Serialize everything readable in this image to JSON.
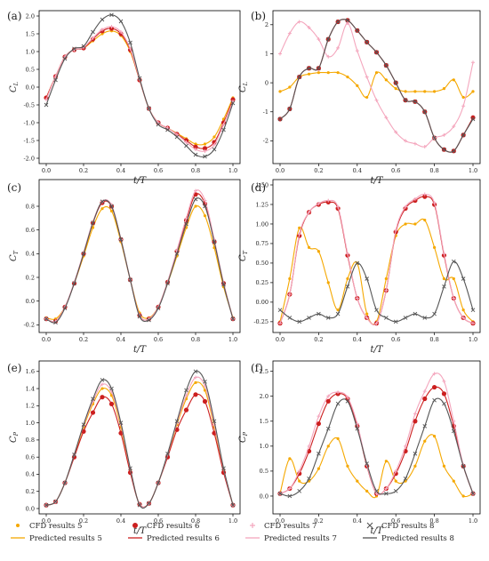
{
  "legend": [
    {
      "label": "CFD results 5",
      "color": "#f5a800",
      "kind": "cfd",
      "marker": "dot-small"
    },
    {
      "label": "Predicted results 5",
      "color": "#f5a800",
      "kind": "pred"
    },
    {
      "label": "CFD results 6",
      "color": "#cc1f1f",
      "kind": "cfd",
      "marker": "dot-large"
    },
    {
      "label": "Predicted results 6",
      "color": "#cc1f1f",
      "kind": "pred"
    },
    {
      "label": "CFD results 7",
      "color": "#f4a6bd",
      "kind": "cfd",
      "marker": "star"
    },
    {
      "label": "Predicted results 7",
      "color": "#f4a6bd",
      "kind": "pred"
    },
    {
      "label": "CFD results 8",
      "color": "#555555",
      "kind": "cfd",
      "marker": "x"
    },
    {
      "label": "Predicted results 8",
      "color": "#555555",
      "kind": "pred"
    }
  ],
  "chart_data": [
    {
      "type": "line",
      "panel": "(a)",
      "xlabel": "t/T",
      "ylabel": "C",
      "ylabel_sub": "L",
      "xlim": [
        0,
        1
      ],
      "ylim": [
        -2.0,
        2.0
      ],
      "xticks": [
        0.0,
        0.2,
        0.4,
        0.6,
        0.8,
        1.0
      ],
      "yticks": [
        -2.0,
        -1.5,
        -1.0,
        -0.5,
        0.0,
        0.5,
        1.0,
        1.5,
        2.0
      ],
      "xtick_labels": [
        "0.0",
        "0.2",
        "0.4",
        "0.6",
        "0.8",
        "1.0"
      ],
      "ytick_labels": [
        "-2.0",
        "-1.5",
        "-1.0",
        "-0.5",
        "0.0",
        "0.5",
        "1.0",
        "1.5",
        "2.0"
      ],
      "x": [
        0.0,
        0.05,
        0.1,
        0.15,
        0.2,
        0.25,
        0.3,
        0.35,
        0.4,
        0.45,
        0.5,
        0.55,
        0.6,
        0.65,
        0.7,
        0.75,
        0.8,
        0.85,
        0.9,
        0.95,
        1.0
      ],
      "series": [
        {
          "name": "5",
          "values": [
            -0.3,
            0.3,
            0.85,
            1.05,
            1.1,
            1.3,
            1.5,
            1.58,
            1.45,
            1.0,
            0.2,
            -0.6,
            -1.0,
            -1.15,
            -1.3,
            -1.45,
            -1.6,
            -1.6,
            -1.4,
            -0.9,
            -0.3
          ]
        },
        {
          "name": "6",
          "values": [
            -0.3,
            0.3,
            0.85,
            1.05,
            1.1,
            1.35,
            1.58,
            1.65,
            1.5,
            1.05,
            0.2,
            -0.6,
            -1.0,
            -1.15,
            -1.32,
            -1.5,
            -1.68,
            -1.72,
            -1.55,
            -1.0,
            -0.35
          ]
        },
        {
          "name": "7",
          "values": [
            -0.35,
            0.3,
            0.85,
            1.05,
            1.12,
            1.38,
            1.62,
            1.7,
            1.55,
            1.08,
            0.22,
            -0.6,
            -1.0,
            -1.15,
            -1.33,
            -1.55,
            -1.75,
            -1.8,
            -1.62,
            -1.05,
            -0.4
          ]
        },
        {
          "name": "8",
          "values": [
            -0.5,
            0.2,
            0.8,
            1.08,
            1.15,
            1.55,
            1.9,
            2.03,
            1.85,
            1.25,
            0.25,
            -0.6,
            -1.05,
            -1.2,
            -1.4,
            -1.65,
            -1.9,
            -1.95,
            -1.75,
            -1.2,
            -0.45
          ]
        }
      ]
    },
    {
      "type": "line",
      "panel": "(b)",
      "xlabel": "t/T",
      "ylabel": "C",
      "ylabel_sub": "L",
      "xlim": [
        0,
        1
      ],
      "ylim": [
        -2.6,
        2.3
      ],
      "xticks": [
        0.0,
        0.2,
        0.4,
        0.6,
        0.8,
        1.0
      ],
      "yticks": [
        -2,
        -1,
        0,
        1,
        2
      ],
      "xtick_labels": [
        "0.0",
        "0.2",
        "0.4",
        "0.6",
        "0.8",
        "1.0"
      ],
      "ytick_labels": [
        "-2",
        "-1",
        "0",
        "1",
        "2"
      ],
      "x": [
        0.0,
        0.05,
        0.1,
        0.15,
        0.2,
        0.25,
        0.3,
        0.35,
        0.4,
        0.45,
        0.5,
        0.55,
        0.6,
        0.65,
        0.7,
        0.75,
        0.8,
        0.85,
        0.9,
        0.95,
        1.0
      ],
      "series": [
        {
          "name": "5",
          "values": [
            -0.3,
            -0.15,
            0.2,
            0.3,
            0.35,
            0.35,
            0.35,
            0.2,
            -0.1,
            -0.5,
            0.35,
            0.1,
            -0.2,
            -0.3,
            -0.3,
            -0.3,
            -0.3,
            -0.2,
            0.1,
            -0.5,
            -0.3
          ]
        },
        {
          "name": "6",
          "values": [
            -1.25,
            -0.9,
            0.2,
            0.5,
            0.5,
            1.5,
            2.1,
            2.15,
            1.8,
            1.4,
            1.05,
            0.6,
            0.0,
            -0.6,
            -0.65,
            -1.0,
            -1.9,
            -2.3,
            -2.35,
            -1.8,
            -1.2
          ]
        },
        {
          "name": "7",
          "values": [
            1.0,
            1.7,
            2.1,
            1.9,
            1.5,
            0.9,
            1.2,
            2.05,
            1.1,
            0.2,
            -0.6,
            -1.2,
            -1.7,
            -2.0,
            -2.1,
            -2.2,
            -1.9,
            -1.8,
            -1.5,
            -0.8,
            0.7
          ]
        },
        {
          "name": "8",
          "values": [
            -1.25,
            -0.9,
            0.2,
            0.5,
            0.5,
            1.5,
            2.1,
            2.15,
            1.8,
            1.4,
            1.05,
            0.6,
            0.0,
            -0.6,
            -0.65,
            -1.0,
            -1.9,
            -2.3,
            -2.35,
            -1.8,
            -1.25
          ]
        }
      ]
    },
    {
      "type": "line",
      "panel": "(c)",
      "xlabel": "t/T",
      "ylabel": "C",
      "ylabel_sub": "T",
      "xlim": [
        0,
        1
      ],
      "ylim": [
        -0.22,
        0.98
      ],
      "xticks": [
        0.0,
        0.2,
        0.4,
        0.6,
        0.8,
        1.0
      ],
      "yticks": [
        -0.2,
        0.0,
        0.2,
        0.4,
        0.6,
        0.8
      ],
      "xtick_labels": [
        "0.0",
        "0.2",
        "0.4",
        "0.6",
        "0.8",
        "1.0"
      ],
      "ytick_labels": [
        "-0.2",
        "0.0",
        "0.2",
        "0.4",
        "0.6",
        "0.8"
      ],
      "x": [
        0.0,
        0.05,
        0.1,
        0.15,
        0.2,
        0.25,
        0.3,
        0.35,
        0.4,
        0.45,
        0.5,
        0.55,
        0.6,
        0.65,
        0.7,
        0.75,
        0.8,
        0.85,
        0.9,
        0.95,
        1.0
      ],
      "series": [
        {
          "name": "5",
          "values": [
            -0.14,
            -0.15,
            -0.05,
            0.15,
            0.38,
            0.62,
            0.78,
            0.76,
            0.5,
            0.18,
            -0.1,
            -0.14,
            -0.05,
            0.15,
            0.38,
            0.62,
            0.8,
            0.72,
            0.45,
            0.12,
            -0.14
          ]
        },
        {
          "name": "6",
          "values": [
            -0.15,
            -0.17,
            -0.05,
            0.15,
            0.4,
            0.66,
            0.83,
            0.8,
            0.52,
            0.18,
            -0.12,
            -0.15,
            -0.05,
            0.16,
            0.42,
            0.68,
            0.9,
            0.82,
            0.5,
            0.15,
            -0.15
          ]
        },
        {
          "name": "7",
          "values": [
            -0.15,
            -0.17,
            -0.05,
            0.16,
            0.41,
            0.67,
            0.84,
            0.81,
            0.52,
            0.18,
            -0.12,
            -0.15,
            -0.05,
            0.16,
            0.43,
            0.7,
            0.93,
            0.85,
            0.52,
            0.15,
            -0.15
          ]
        },
        {
          "name": "8",
          "values": [
            -0.15,
            -0.18,
            -0.06,
            0.15,
            0.4,
            0.66,
            0.84,
            0.8,
            0.52,
            0.18,
            -0.13,
            -0.16,
            -0.06,
            0.15,
            0.4,
            0.65,
            0.86,
            0.8,
            0.5,
            0.14,
            -0.15
          ]
        }
      ]
    },
    {
      "type": "line",
      "panel": "(d)",
      "xlabel": "t/T",
      "ylabel": "C",
      "ylabel_sub": "T",
      "xlim": [
        0,
        1
      ],
      "ylim": [
        -0.32,
        1.5
      ],
      "xticks": [
        0.0,
        0.2,
        0.4,
        0.6,
        0.8,
        1.0
      ],
      "yticks": [
        -0.25,
        0.0,
        0.25,
        0.5,
        0.75,
        1.0,
        1.25,
        1.5
      ],
      "xtick_labels": [
        "0.0",
        "0.2",
        "0.4",
        "0.6",
        "0.8",
        "1.0"
      ],
      "ytick_labels": [
        "-0.25",
        "0.00",
        "0.25",
        "0.50",
        "0.75",
        "1.00",
        "1.25",
        "1.50"
      ],
      "x": [
        0.0,
        0.05,
        0.1,
        0.15,
        0.2,
        0.25,
        0.3,
        0.35,
        0.4,
        0.45,
        0.5,
        0.55,
        0.6,
        0.65,
        0.7,
        0.75,
        0.8,
        0.85,
        0.9,
        0.95,
        1.0
      ],
      "series": [
        {
          "name": "5",
          "values": [
            -0.25,
            0.3,
            0.95,
            0.7,
            0.65,
            0.25,
            -0.1,
            0.3,
            0.5,
            -0.15,
            -0.25,
            0.3,
            0.85,
            1.0,
            1.0,
            1.05,
            0.7,
            0.3,
            0.3,
            -0.1,
            -0.25
          ]
        },
        {
          "name": "6",
          "values": [
            -0.27,
            0.1,
            0.85,
            1.15,
            1.25,
            1.28,
            1.2,
            0.6,
            0.05,
            -0.2,
            -0.27,
            0.15,
            0.9,
            1.2,
            1.3,
            1.35,
            1.25,
            0.6,
            0.05,
            -0.2,
            -0.27
          ]
        },
        {
          "name": "7",
          "values": [
            -0.27,
            0.1,
            0.87,
            1.15,
            1.26,
            1.3,
            1.22,
            0.62,
            0.05,
            -0.2,
            -0.27,
            0.15,
            0.92,
            1.22,
            1.32,
            1.38,
            1.27,
            0.62,
            0.05,
            -0.2,
            -0.27
          ]
        },
        {
          "name": "8",
          "values": [
            -0.1,
            -0.2,
            -0.25,
            -0.2,
            -0.15,
            -0.2,
            -0.15,
            0.2,
            0.5,
            0.3,
            -0.1,
            -0.2,
            -0.25,
            -0.2,
            -0.15,
            -0.2,
            -0.15,
            0.2,
            0.52,
            0.3,
            -0.1
          ]
        }
      ]
    },
    {
      "type": "line",
      "panel": "(e)",
      "xlabel": "t/T",
      "ylabel": "C",
      "ylabel_sub": "P",
      "xlim": [
        0,
        1
      ],
      "ylim": [
        0.0,
        1.66
      ],
      "xticks": [
        0.0,
        0.2,
        0.4,
        0.6,
        0.8,
        1.0
      ],
      "yticks": [
        0.0,
        0.2,
        0.4,
        0.6,
        0.8,
        1.0,
        1.2,
        1.4,
        1.6
      ],
      "xtick_labels": [
        "0.0",
        "0.2",
        "0.4",
        "0.6",
        "0.8",
        "1.0"
      ],
      "ytick_labels": [
        "0.0",
        "0.2",
        "0.4",
        "0.6",
        "0.8",
        "1.0",
        "1.2",
        "1.4",
        "1.6"
      ],
      "x": [
        0.0,
        0.05,
        0.1,
        0.15,
        0.2,
        0.25,
        0.3,
        0.35,
        0.4,
        0.45,
        0.5,
        0.55,
        0.6,
        0.65,
        0.7,
        0.75,
        0.8,
        0.85,
        0.9,
        0.95,
        1.0
      ],
      "series": [
        {
          "name": "5",
          "values": [
            0.04,
            0.08,
            0.3,
            0.62,
            0.95,
            1.22,
            1.4,
            1.32,
            0.95,
            0.45,
            0.05,
            0.06,
            0.3,
            0.62,
            0.98,
            1.28,
            1.47,
            1.38,
            0.95,
            0.45,
            0.04
          ]
        },
        {
          "name": "6",
          "values": [
            0.04,
            0.08,
            0.3,
            0.6,
            0.9,
            1.12,
            1.3,
            1.22,
            0.88,
            0.42,
            0.05,
            0.06,
            0.3,
            0.6,
            0.92,
            1.15,
            1.33,
            1.25,
            0.88,
            0.42,
            0.04
          ]
        },
        {
          "name": "7",
          "values": [
            0.04,
            0.08,
            0.3,
            0.63,
            0.97,
            1.25,
            1.45,
            1.36,
            0.98,
            0.46,
            0.05,
            0.06,
            0.3,
            0.63,
            1.0,
            1.32,
            1.53,
            1.43,
            0.98,
            0.46,
            0.04
          ]
        },
        {
          "name": "8",
          "values": [
            0.04,
            0.08,
            0.3,
            0.63,
            0.98,
            1.28,
            1.5,
            1.4,
            1.0,
            0.47,
            0.04,
            0.06,
            0.3,
            0.64,
            1.02,
            1.38,
            1.6,
            1.48,
            1.02,
            0.47,
            0.04
          ]
        }
      ]
    },
    {
      "type": "line",
      "panel": "(f)",
      "xlabel": "t/T",
      "ylabel": "C",
      "ylabel_sub": "P",
      "xlim": [
        0,
        1
      ],
      "ylim": [
        -0.25,
        2.6
      ],
      "xticks": [
        0.0,
        0.2,
        0.4,
        0.6,
        0.8,
        1.0
      ],
      "yticks": [
        0.0,
        0.5,
        1.0,
        1.5,
        2.0,
        2.5
      ],
      "xtick_labels": [
        "0.0",
        "0.2",
        "0.4",
        "0.6",
        "0.8",
        "1.0"
      ],
      "ytick_labels": [
        "0.0",
        "0.5",
        "1.0",
        "1.5",
        "2.0",
        "2.5"
      ],
      "x": [
        0.0,
        0.05,
        0.1,
        0.15,
        0.2,
        0.25,
        0.3,
        0.35,
        0.4,
        0.45,
        0.5,
        0.55,
        0.6,
        0.65,
        0.7,
        0.75,
        0.8,
        0.85,
        0.9,
        0.95,
        1.0
      ],
      "series": [
        {
          "name": "5",
          "values": [
            0.05,
            0.75,
            0.3,
            0.3,
            0.55,
            1.0,
            1.15,
            0.6,
            0.3,
            0.1,
            0.0,
            0.7,
            0.3,
            0.3,
            0.6,
            1.1,
            1.2,
            0.6,
            0.3,
            0.0,
            0.05
          ]
        },
        {
          "name": "6",
          "values": [
            0.05,
            0.15,
            0.45,
            0.9,
            1.45,
            1.9,
            2.05,
            1.95,
            1.4,
            0.6,
            0.05,
            0.15,
            0.45,
            0.9,
            1.5,
            1.95,
            2.18,
            2.05,
            1.4,
            0.6,
            0.05
          ]
        },
        {
          "name": "7",
          "values": [
            0.05,
            0.15,
            0.5,
            1.0,
            1.6,
            2.0,
            2.08,
            1.98,
            1.45,
            0.62,
            0.05,
            0.15,
            0.5,
            1.0,
            1.65,
            2.1,
            2.45,
            2.3,
            1.5,
            0.62,
            0.05
          ]
        },
        {
          "name": "8",
          "values": [
            0.05,
            0.0,
            0.1,
            0.35,
            0.85,
            1.35,
            1.85,
            1.9,
            1.35,
            0.65,
            0.1,
            0.05,
            0.1,
            0.35,
            0.85,
            1.4,
            1.92,
            1.85,
            1.3,
            0.6,
            0.05
          ]
        }
      ]
    }
  ]
}
